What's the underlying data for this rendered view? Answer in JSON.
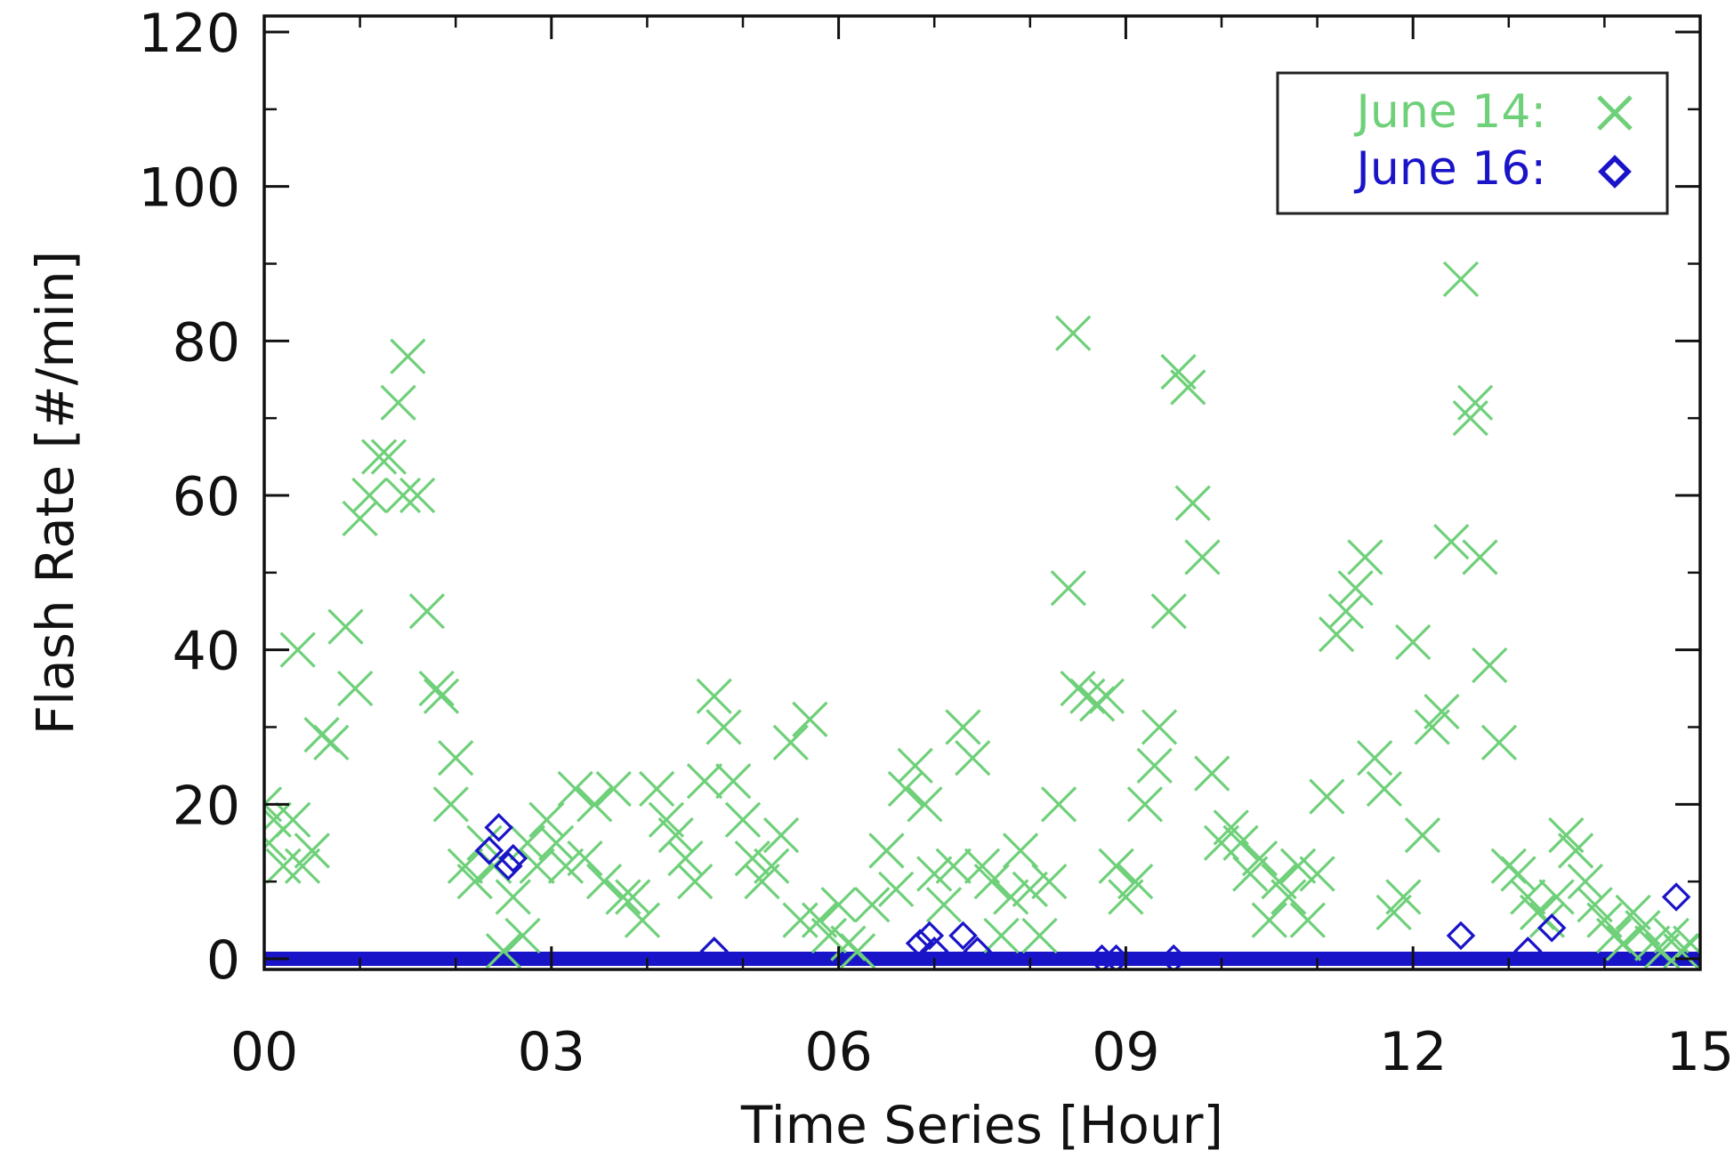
{
  "chart_data": {
    "type": "scatter",
    "xlabel": "Time Series [Hour]",
    "ylabel": "Flash Rate [#/min]",
    "xlim": [
      0,
      15
    ],
    "ylim": [
      -2,
      120
    ],
    "x_ticks": [
      0,
      3,
      6,
      9,
      12,
      15
    ],
    "x_tick_labels": [
      "00",
      "03",
      "06",
      "09",
      "12",
      "15"
    ],
    "y_ticks": [
      0,
      20,
      40,
      60,
      80,
      100,
      120
    ],
    "y_tick_labels": [
      "0",
      "20",
      "40",
      "60",
      "80",
      "100",
      "120"
    ],
    "grid": false,
    "legend_position": "top-right",
    "series": [
      {
        "name": "June 14:",
        "marker": "x",
        "color": "#6fd07a",
        "points": [
          [
            0.0,
            20
          ],
          [
            0.05,
            15
          ],
          [
            0.1,
            18
          ],
          [
            0.2,
            12
          ],
          [
            0.3,
            18
          ],
          [
            0.35,
            40
          ],
          [
            0.4,
            12
          ],
          [
            0.5,
            14
          ],
          [
            0.6,
            29
          ],
          [
            0.7,
            28
          ],
          [
            0.85,
            43
          ],
          [
            0.95,
            35
          ],
          [
            1.0,
            57
          ],
          [
            1.1,
            60
          ],
          [
            1.2,
            65
          ],
          [
            1.3,
            65
          ],
          [
            1.4,
            72
          ],
          [
            1.45,
            60
          ],
          [
            1.5,
            78
          ],
          [
            1.6,
            60
          ],
          [
            1.7,
            45
          ],
          [
            1.8,
            35
          ],
          [
            1.85,
            34
          ],
          [
            1.95,
            20
          ],
          [
            2.0,
            26
          ],
          [
            2.1,
            12
          ],
          [
            2.2,
            10
          ],
          [
            2.3,
            15
          ],
          [
            2.4,
            12
          ],
          [
            2.5,
            1
          ],
          [
            2.6,
            8
          ],
          [
            2.7,
            3
          ],
          [
            2.75,
            15
          ],
          [
            2.85,
            12
          ],
          [
            2.95,
            18
          ],
          [
            3.05,
            15
          ],
          [
            3.15,
            12
          ],
          [
            3.25,
            22
          ],
          [
            3.35,
            13
          ],
          [
            3.45,
            20
          ],
          [
            3.55,
            10
          ],
          [
            3.65,
            22
          ],
          [
            3.75,
            8
          ],
          [
            3.85,
            8
          ],
          [
            3.95,
            5
          ],
          [
            4.1,
            22
          ],
          [
            4.2,
            18
          ],
          [
            4.3,
            16
          ],
          [
            4.4,
            13
          ],
          [
            4.5,
            10
          ],
          [
            4.6,
            23
          ],
          [
            4.7,
            34
          ],
          [
            4.8,
            30
          ],
          [
            4.9,
            23
          ],
          [
            5.0,
            18
          ],
          [
            5.1,
            13
          ],
          [
            5.2,
            10
          ],
          [
            5.3,
            12
          ],
          [
            5.4,
            16
          ],
          [
            5.5,
            28
          ],
          [
            5.6,
            5
          ],
          [
            5.7,
            31
          ],
          [
            5.8,
            5
          ],
          [
            5.9,
            3
          ],
          [
            6.0,
            7
          ],
          [
            6.1,
            2
          ],
          [
            6.2,
            1
          ],
          [
            6.35,
            7
          ],
          [
            6.5,
            14
          ],
          [
            6.6,
            9
          ],
          [
            6.7,
            22
          ],
          [
            6.8,
            25
          ],
          [
            6.9,
            20
          ],
          [
            7.0,
            11
          ],
          [
            7.1,
            7
          ],
          [
            7.2,
            12
          ],
          [
            7.3,
            30
          ],
          [
            7.4,
            26
          ],
          [
            7.5,
            12
          ],
          [
            7.6,
            10
          ],
          [
            7.7,
            3
          ],
          [
            7.8,
            8
          ],
          [
            7.9,
            14
          ],
          [
            8.0,
            9
          ],
          [
            8.1,
            3
          ],
          [
            8.2,
            10
          ],
          [
            8.3,
            20
          ],
          [
            8.4,
            48
          ],
          [
            8.45,
            81
          ],
          [
            8.5,
            35
          ],
          [
            8.6,
            34
          ],
          [
            8.7,
            33
          ],
          [
            8.8,
            34
          ],
          [
            8.9,
            12
          ],
          [
            9.0,
            8
          ],
          [
            9.1,
            10
          ],
          [
            9.2,
            20
          ],
          [
            9.3,
            25
          ],
          [
            9.35,
            30
          ],
          [
            9.45,
            45
          ],
          [
            9.55,
            76
          ],
          [
            9.65,
            74
          ],
          [
            9.7,
            59
          ],
          [
            9.8,
            52
          ],
          [
            9.9,
            24
          ],
          [
            10.0,
            15
          ],
          [
            10.1,
            17
          ],
          [
            10.2,
            15
          ],
          [
            10.3,
            11
          ],
          [
            10.4,
            13
          ],
          [
            10.5,
            5
          ],
          [
            10.6,
            10
          ],
          [
            10.7,
            8
          ],
          [
            10.8,
            12
          ],
          [
            10.9,
            5
          ],
          [
            11.0,
            11
          ],
          [
            11.1,
            21
          ],
          [
            11.2,
            42
          ],
          [
            11.3,
            45
          ],
          [
            11.4,
            48
          ],
          [
            11.5,
            52
          ],
          [
            11.6,
            26
          ],
          [
            11.7,
            22
          ],
          [
            11.8,
            6
          ],
          [
            11.9,
            8
          ],
          [
            12.0,
            41
          ],
          [
            12.1,
            16
          ],
          [
            12.2,
            30
          ],
          [
            12.3,
            32
          ],
          [
            12.4,
            54
          ],
          [
            12.5,
            88
          ],
          [
            12.6,
            70
          ],
          [
            12.65,
            72
          ],
          [
            12.7,
            52
          ],
          [
            12.8,
            38
          ],
          [
            12.9,
            28
          ],
          [
            13.0,
            12
          ],
          [
            13.1,
            11
          ],
          [
            13.2,
            8
          ],
          [
            13.3,
            6
          ],
          [
            13.4,
            5
          ],
          [
            13.5,
            8
          ],
          [
            13.6,
            16
          ],
          [
            13.7,
            14
          ],
          [
            13.8,
            10
          ],
          [
            13.9,
            7
          ],
          [
            14.0,
            5
          ],
          [
            14.1,
            3
          ],
          [
            14.2,
            2
          ],
          [
            14.3,
            6
          ],
          [
            14.4,
            4
          ],
          [
            14.5,
            2
          ],
          [
            14.6,
            1
          ],
          [
            14.7,
            3
          ],
          [
            14.8,
            1
          ],
          [
            14.9,
            2
          ]
        ]
      },
      {
        "name": "June 16:",
        "marker": "diamond",
        "color": "#1a14c8",
        "points": [
          [
            2.35,
            14
          ],
          [
            2.45,
            17
          ],
          [
            2.55,
            12
          ],
          [
            2.6,
            13
          ],
          [
            4.7,
            1
          ],
          [
            6.85,
            2
          ],
          [
            6.95,
            3
          ],
          [
            7.0,
            1
          ],
          [
            7.3,
            3
          ],
          [
            7.45,
            1
          ],
          [
            8.75,
            0
          ],
          [
            8.9,
            0
          ],
          [
            9.5,
            0
          ],
          [
            12.5,
            3
          ],
          [
            13.2,
            1
          ],
          [
            13.45,
            4
          ],
          [
            14.75,
            8
          ]
        ],
        "baseline_value": 0
      }
    ]
  }
}
